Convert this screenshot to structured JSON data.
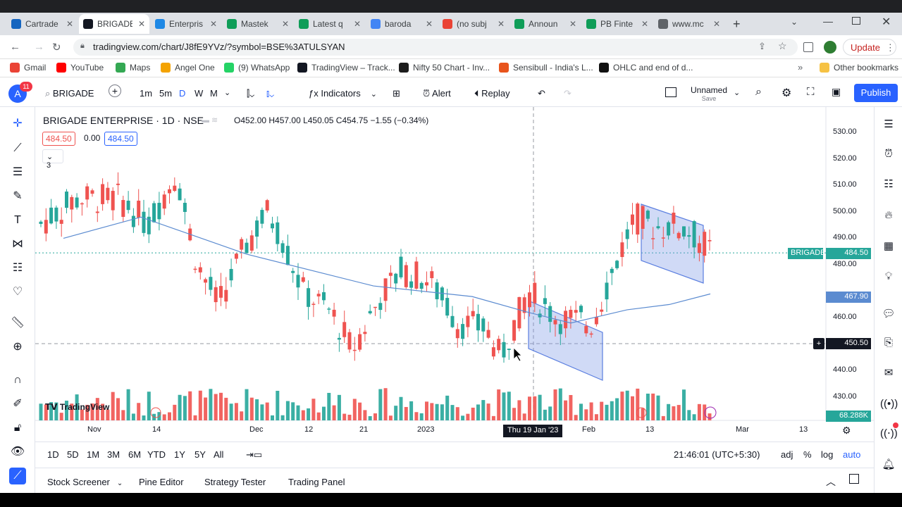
{
  "browser": {
    "tabs": [
      {
        "label": "Cartrade",
        "color": "#1565c0"
      },
      {
        "label": "BRIGADE",
        "color": "#131722"
      },
      {
        "label": "Enterpris",
        "color": "#1e88e5"
      },
      {
        "label": "Mastek",
        "color": "#0f9d58"
      },
      {
        "label": "Latest q",
        "color": "#0f9d58"
      },
      {
        "label": "baroda",
        "color": "#4285f4"
      },
      {
        "label": "(no subj",
        "color": "#ea4335"
      },
      {
        "label": "Announ",
        "color": "#0f9d58"
      },
      {
        "label": "PB Finte",
        "color": "#0f9d58"
      },
      {
        "label": "www.mc",
        "color": "#5f6368"
      }
    ],
    "url": "tradingview.com/chart/J8fE9YVz/?symbol=BSE%3ATULSYAN",
    "update_label": "Update",
    "bookmarks": [
      "Gmail",
      "YouTube",
      "Maps",
      "Angel One",
      "(9) WhatsApp",
      "TradingView – Track...",
      "Nifty 50 Chart - Inv...",
      "Sensibull - India's L...",
      "OHLC and end of d..."
    ],
    "other_bookmarks": "Other bookmarks"
  },
  "toolbar": {
    "symbol": "BRIGADE",
    "notif": "11",
    "intervals": [
      "1m",
      "5m",
      "D",
      "W",
      "M"
    ],
    "indicators": "Indicators",
    "alert": "Alert",
    "replay": "Replay",
    "layout_name": "Unnamed",
    "layout_sub": "Save",
    "publish": "Publish"
  },
  "legend": {
    "title": "BRIGADE ENTERPRISE · 1D · NSE",
    "ohlc": "O452.00  H457.00  L450.05  C454.75  −1.55 (−0.34%)",
    "bid": "484.50",
    "spread": "0.00",
    "ask": "484.50",
    "indicator_count": "3"
  },
  "price_axis": {
    "ticks": [
      "530.00",
      "520.00",
      "510.00",
      "500.00",
      "490.00",
      "480.00",
      "460.00",
      "450.00",
      "440.00",
      "430.00"
    ],
    "last_label": "BRIGADE",
    "last_price": "484.50",
    "ma_price": "467.90",
    "cross_price": "450.50",
    "vol_label": "68.288K",
    "partial_tick": "470.00"
  },
  "time_axis": {
    "ticks": [
      "Nov",
      "14",
      "Dec",
      "12",
      "21",
      "2023",
      "Feb",
      "13",
      "Mar",
      "13"
    ],
    "cursor_date": "Thu 19 Jan '23"
  },
  "watermark": "TradingView",
  "bottom": {
    "ranges": [
      "1D",
      "5D",
      "1M",
      "3M",
      "6M",
      "YTD",
      "1Y",
      "5Y",
      "All"
    ],
    "clock": "21:46:01 (UTC+5:30)",
    "adj": "adj",
    "pct": "%",
    "log": "log",
    "auto": "auto"
  },
  "panels": [
    "Stock Screener",
    "Pine Editor",
    "Strategy Tester",
    "Trading Panel"
  ],
  "colors": {
    "up": "#26a69a",
    "down": "#ef5350",
    "ma": "#5b8bd0",
    "accent": "#2962ff",
    "channel": "rgba(120,150,230,0.35)"
  }
}
